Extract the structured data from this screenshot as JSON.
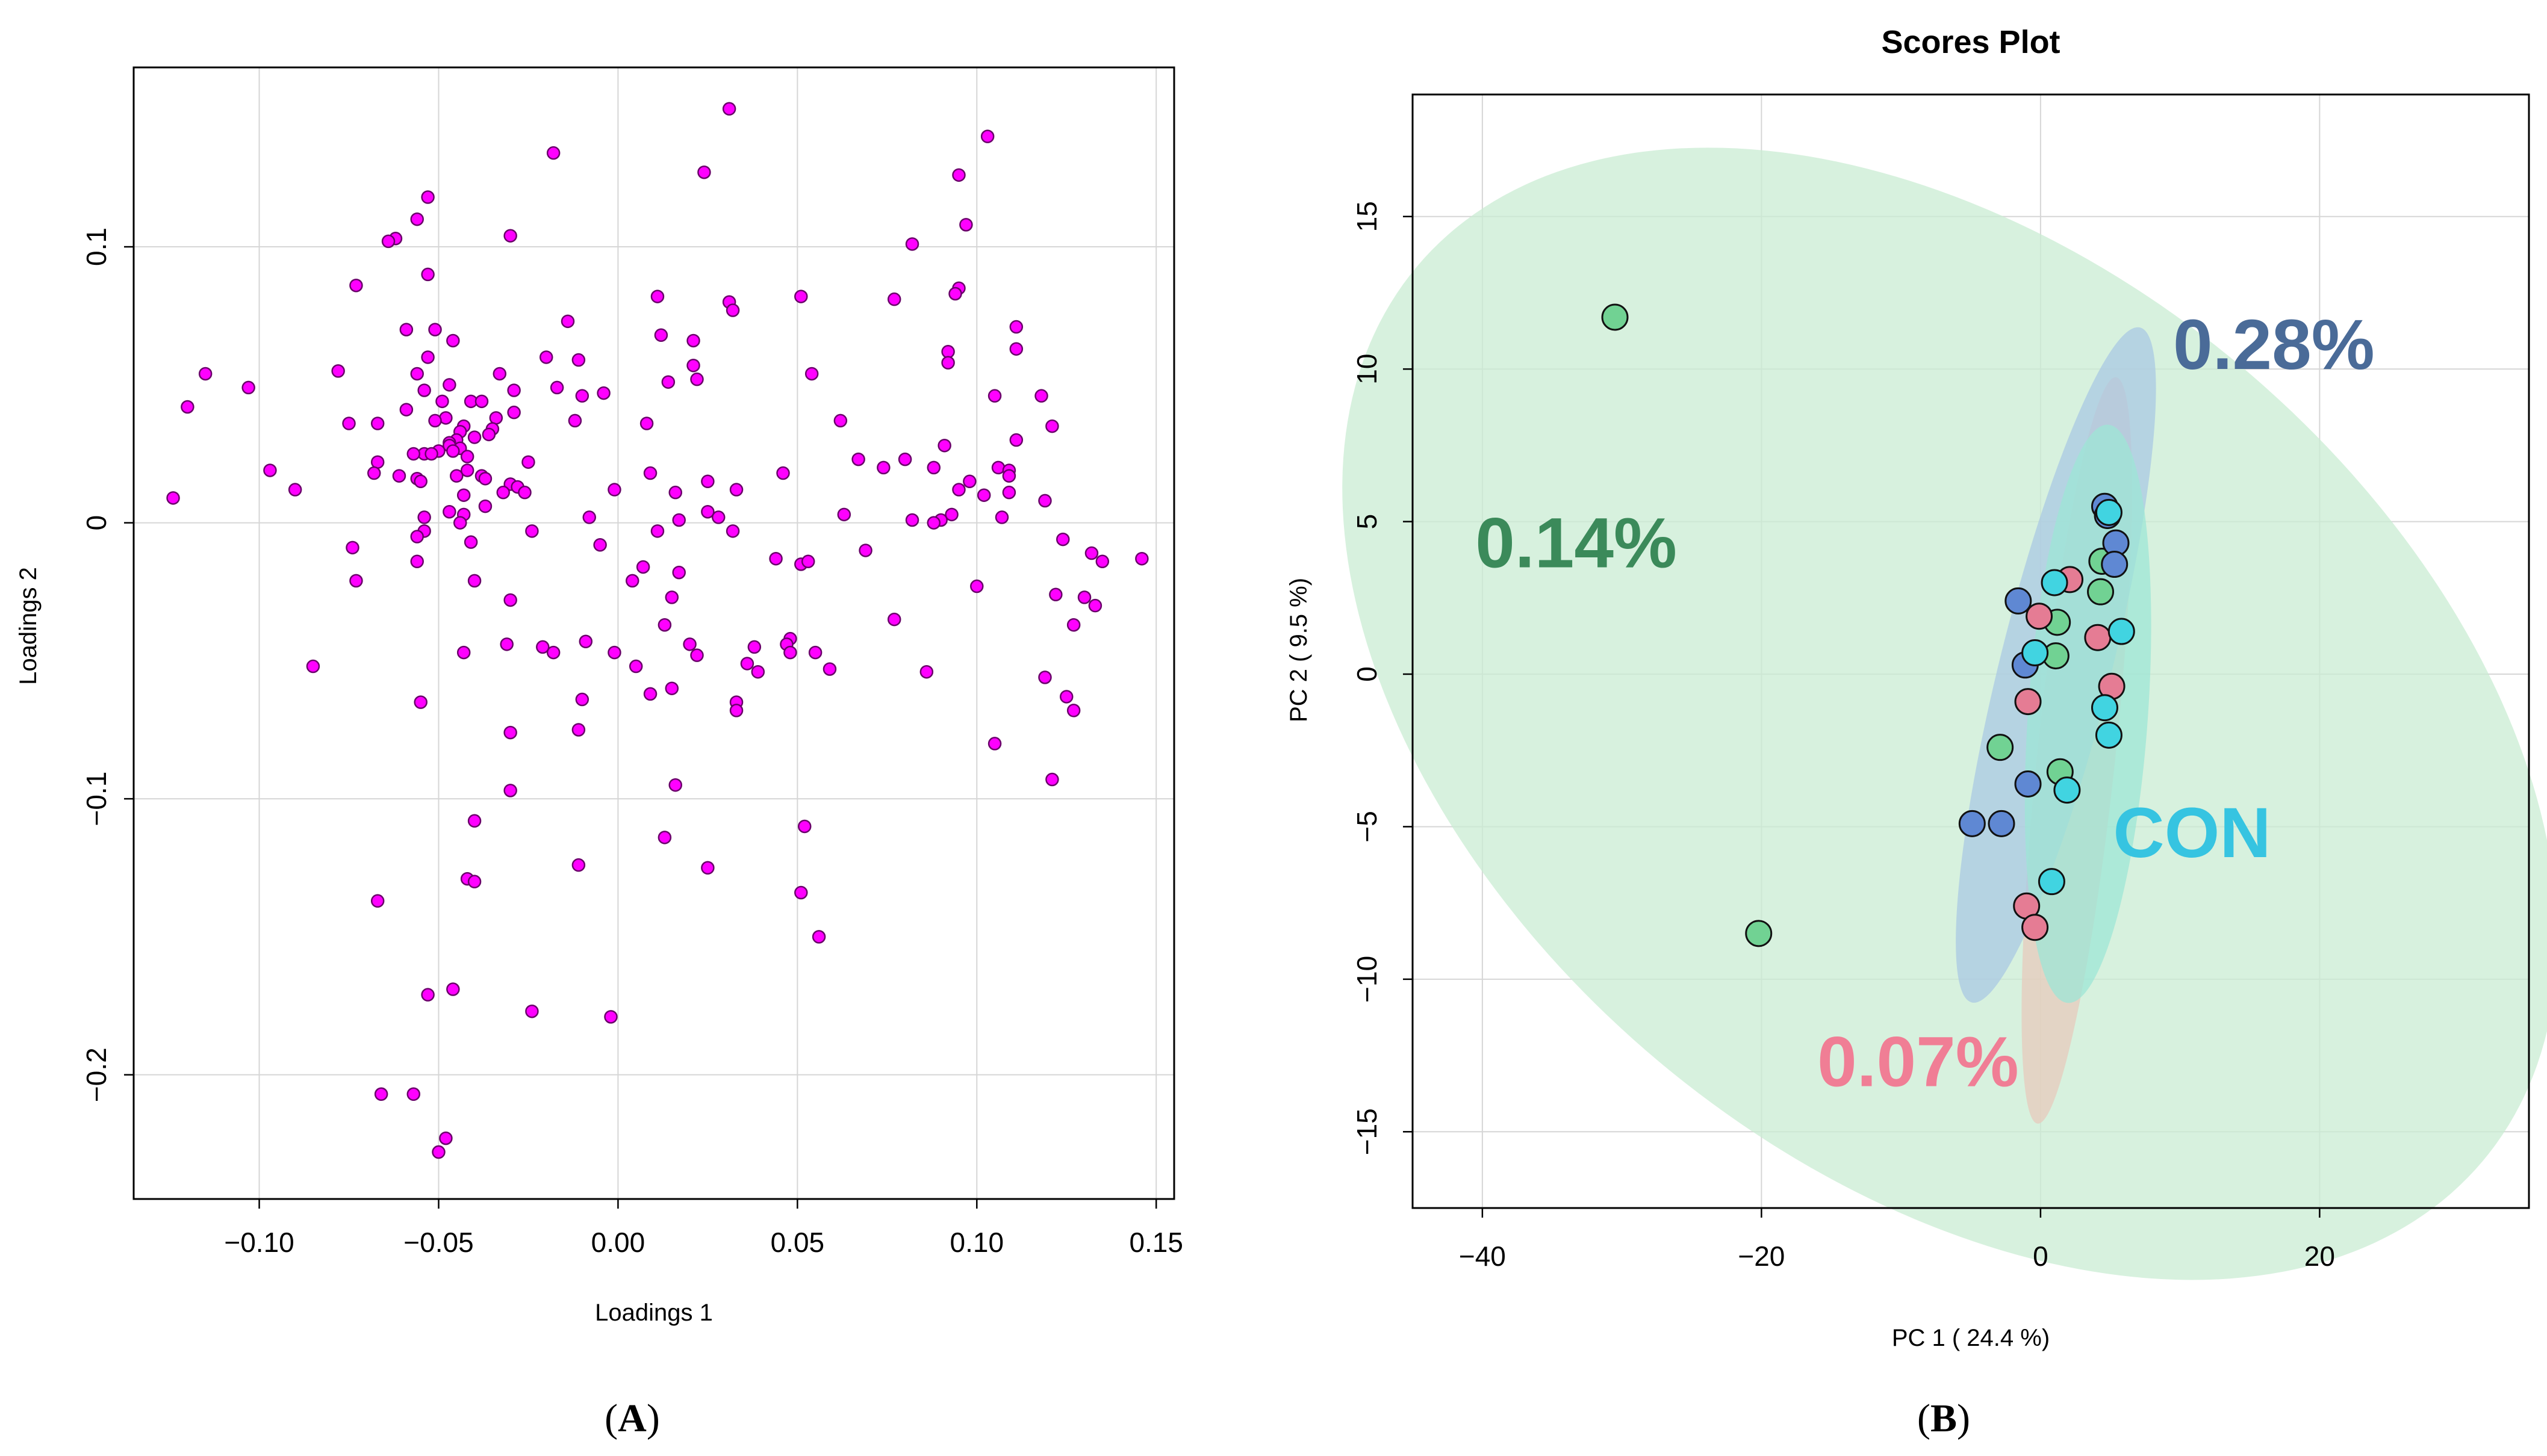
{
  "chart_data": [
    {
      "type": "scatter",
      "panel_label": "A",
      "title": "",
      "xlabel": "Loadings 1",
      "ylabel": "Loadings 2",
      "xlim": [
        -0.135,
        0.155
      ],
      "ylim": [
        -0.245,
        0.165
      ],
      "xticks": [
        -0.1,
        -0.05,
        0.0,
        0.05,
        0.1,
        0.15
      ],
      "xtick_labels": [
        "−0.10",
        "−0.05",
        "0.00",
        "0.05",
        "0.10",
        "0.15"
      ],
      "yticks": [
        -0.2,
        -0.1,
        0,
        0.1
      ],
      "ytick_labels": [
        "−0.2",
        "−0.1",
        "0",
        "0.1"
      ],
      "grid": true,
      "point_color": "#ff00ff",
      "points": [
        [
          0.031,
          0.15
        ],
        [
          0.103,
          0.14
        ],
        [
          -0.018,
          0.134
        ],
        [
          0.024,
          0.127
        ],
        [
          0.095,
          0.126
        ],
        [
          -0.053,
          0.118
        ],
        [
          -0.056,
          0.11
        ],
        [
          0.097,
          0.108
        ],
        [
          -0.03,
          0.104
        ],
        [
          -0.062,
          0.103
        ],
        [
          -0.064,
          0.102
        ],
        [
          0.082,
          0.101
        ],
        [
          -0.053,
          0.09
        ],
        [
          -0.073,
          0.086
        ],
        [
          0.095,
          0.085
        ],
        [
          0.094,
          0.083
        ],
        [
          0.011,
          0.082
        ],
        [
          0.051,
          0.082
        ],
        [
          0.077,
          0.081
        ],
        [
          0.031,
          0.08
        ],
        [
          0.032,
          0.077
        ],
        [
          -0.014,
          0.073
        ],
        [
          0.111,
          0.071
        ],
        [
          -0.059,
          0.07
        ],
        [
          -0.051,
          0.07
        ],
        [
          0.012,
          0.068
        ],
        [
          -0.046,
          0.066
        ],
        [
          0.021,
          0.066
        ],
        [
          0.111,
          0.063
        ],
        [
          0.092,
          0.062
        ],
        [
          -0.053,
          0.06
        ],
        [
          -0.02,
          0.06
        ],
        [
          -0.011,
          0.059
        ],
        [
          0.092,
          0.058
        ],
        [
          0.021,
          0.057
        ],
        [
          -0.078,
          0.055
        ],
        [
          -0.115,
          0.054
        ],
        [
          -0.056,
          0.054
        ],
        [
          -0.033,
          0.054
        ],
        [
          0.054,
          0.054
        ],
        [
          0.022,
          0.052
        ],
        [
          0.014,
          0.051
        ],
        [
          -0.047,
          0.05
        ],
        [
          -0.017,
          0.049
        ],
        [
          -0.103,
          0.049
        ],
        [
          -0.054,
          0.048
        ],
        [
          -0.029,
          0.048
        ],
        [
          -0.004,
          0.047
        ],
        [
          -0.01,
          0.046
        ],
        [
          0.105,
          0.046
        ],
        [
          0.118,
          0.046
        ],
        [
          -0.12,
          0.042
        ],
        [
          -0.041,
          0.044
        ],
        [
          -0.049,
          0.044
        ],
        [
          -0.038,
          0.044
        ],
        [
          -0.059,
          0.041
        ],
        [
          -0.029,
          0.04
        ],
        [
          -0.048,
          0.038
        ],
        [
          -0.034,
          0.038
        ],
        [
          -0.051,
          0.037
        ],
        [
          -0.012,
          0.037
        ],
        [
          -0.075,
          0.036
        ],
        [
          -0.067,
          0.036
        ],
        [
          -0.043,
          0.035
        ],
        [
          0.062,
          0.037
        ],
        [
          0.008,
          0.036
        ],
        [
          0.121,
          0.035
        ],
        [
          -0.035,
          0.034
        ],
        [
          -0.044,
          0.033
        ],
        [
          -0.036,
          0.032
        ],
        [
          -0.04,
          0.031
        ],
        [
          0.111,
          0.03
        ],
        [
          -0.045,
          0.03
        ],
        [
          -0.047,
          0.029
        ],
        [
          -0.047,
          0.028
        ],
        [
          0.091,
          0.028
        ],
        [
          -0.044,
          0.027
        ],
        [
          -0.05,
          0.026
        ],
        [
          -0.046,
          0.026
        ],
        [
          -0.054,
          0.025
        ],
        [
          -0.057,
          0.025
        ],
        [
          -0.052,
          0.025
        ],
        [
          -0.042,
          0.024
        ],
        [
          0.067,
          0.023
        ],
        [
          -0.025,
          0.022
        ],
        [
          0.08,
          0.023
        ],
        [
          -0.067,
          0.022
        ],
        [
          0.074,
          0.02
        ],
        [
          0.088,
          0.02
        ],
        [
          0.106,
          0.02
        ],
        [
          -0.097,
          0.019
        ],
        [
          0.109,
          0.019
        ],
        [
          0.009,
          0.018
        ],
        [
          0.046,
          0.018
        ],
        [
          0.109,
          0.017
        ],
        [
          -0.042,
          0.019
        ],
        [
          -0.068,
          0.018
        ],
        [
          -0.061,
          0.017
        ],
        [
          -0.045,
          0.017
        ],
        [
          -0.038,
          0.017
        ],
        [
          -0.056,
          0.016
        ],
        [
          -0.055,
          0.015
        ],
        [
          -0.037,
          0.016
        ],
        [
          -0.03,
          0.014
        ],
        [
          0.098,
          0.015
        ],
        [
          -0.028,
          0.013
        ],
        [
          0.025,
          0.015
        ],
        [
          -0.026,
          0.011
        ],
        [
          -0.001,
          0.012
        ],
        [
          0.033,
          0.012
        ],
        [
          0.109,
          0.011
        ],
        [
          -0.09,
          0.012
        ],
        [
          0.095,
          0.012
        ],
        [
          -0.032,
          0.011
        ],
        [
          -0.043,
          0.01
        ],
        [
          -0.124,
          0.009
        ],
        [
          0.016,
          0.011
        ],
        [
          0.102,
          0.01
        ],
        [
          0.119,
          0.008
        ],
        [
          -0.037,
          0.006
        ],
        [
          0.063,
          0.003
        ],
        [
          0.025,
          0.004
        ],
        [
          -0.047,
          0.004
        ],
        [
          0.093,
          0.003
        ],
        [
          -0.043,
          0.003
        ],
        [
          -0.054,
          0.002
        ],
        [
          -0.008,
          0.002
        ],
        [
          0.028,
          0.002
        ],
        [
          0.082,
          0.001
        ],
        [
          0.09,
          0.001
        ],
        [
          0.107,
          0.002
        ],
        [
          0.088,
          0.0
        ],
        [
          0.017,
          0.001
        ],
        [
          -0.044,
          0.0
        ],
        [
          -0.054,
          -0.003
        ],
        [
          -0.056,
          -0.005
        ],
        [
          -0.024,
          -0.003
        ],
        [
          0.011,
          -0.003
        ],
        [
          0.032,
          -0.003
        ],
        [
          -0.041,
          -0.007
        ],
        [
          -0.074,
          -0.009
        ],
        [
          0.124,
          -0.006
        ],
        [
          -0.005,
          -0.008
        ],
        [
          0.069,
          -0.01
        ],
        [
          0.044,
          -0.013
        ],
        [
          0.132,
          -0.011
        ],
        [
          0.135,
          -0.014
        ],
        [
          0.146,
          -0.013
        ],
        [
          0.051,
          -0.015
        ],
        [
          -0.056,
          -0.014
        ],
        [
          0.053,
          -0.014
        ],
        [
          0.007,
          -0.016
        ],
        [
          -0.04,
          -0.021
        ],
        [
          -0.073,
          -0.021
        ],
        [
          0.017,
          -0.018
        ],
        [
          0.1,
          -0.023
        ],
        [
          0.122,
          -0.026
        ],
        [
          0.13,
          -0.027
        ],
        [
          0.004,
          -0.021
        ],
        [
          0.015,
          -0.027
        ],
        [
          0.133,
          -0.03
        ],
        [
          -0.03,
          -0.028
        ],
        [
          0.077,
          -0.035
        ],
        [
          0.127,
          -0.037
        ],
        [
          -0.031,
          -0.044
        ],
        [
          -0.009,
          -0.043
        ],
        [
          0.02,
          -0.044
        ],
        [
          0.013,
          -0.037
        ],
        [
          0.038,
          -0.045
        ],
        [
          0.048,
          -0.042
        ],
        [
          0.047,
          -0.044
        ],
        [
          -0.021,
          -0.045
        ],
        [
          -0.018,
          -0.047
        ],
        [
          0.022,
          -0.048
        ],
        [
          0.036,
          -0.051
        ],
        [
          0.048,
          -0.047
        ],
        [
          0.039,
          -0.054
        ],
        [
          0.055,
          -0.047
        ],
        [
          -0.043,
          -0.047
        ],
        [
          -0.001,
          -0.047
        ],
        [
          0.005,
          -0.052
        ],
        [
          0.059,
          -0.053
        ],
        [
          0.086,
          -0.054
        ],
        [
          -0.085,
          -0.052
        ],
        [
          0.119,
          -0.056
        ],
        [
          0.015,
          -0.06
        ],
        [
          0.009,
          -0.062
        ],
        [
          -0.01,
          -0.064
        ],
        [
          0.033,
          -0.065
        ],
        [
          0.033,
          -0.068
        ],
        [
          0.125,
          -0.063
        ],
        [
          -0.055,
          -0.065
        ],
        [
          0.127,
          -0.068
        ],
        [
          -0.03,
          -0.076
        ],
        [
          -0.011,
          -0.075
        ],
        [
          0.105,
          -0.08
        ],
        [
          0.121,
          -0.093
        ],
        [
          0.016,
          -0.095
        ],
        [
          -0.03,
          -0.097
        ],
        [
          -0.04,
          -0.108
        ],
        [
          0.052,
          -0.11
        ],
        [
          0.013,
          -0.114
        ],
        [
          -0.011,
          -0.124
        ],
        [
          0.025,
          -0.125
        ],
        [
          -0.042,
          -0.129
        ],
        [
          -0.04,
          -0.13
        ],
        [
          0.051,
          -0.134
        ],
        [
          -0.067,
          -0.137
        ],
        [
          0.056,
          -0.15
        ],
        [
          -0.053,
          -0.171
        ],
        [
          -0.046,
          -0.169
        ],
        [
          -0.024,
          -0.177
        ],
        [
          -0.002,
          -0.179
        ],
        [
          -0.066,
          -0.207
        ],
        [
          -0.057,
          -0.207
        ],
        [
          -0.048,
          -0.223
        ],
        [
          -0.05,
          -0.228
        ]
      ]
    },
    {
      "type": "scatter",
      "panel_label": "B",
      "title": "Scores Plot",
      "xlabel": "PC 1 ( 24.4 %)",
      "ylabel": "PC 2 ( 9.5 %)",
      "xlim": [
        -45,
        35
      ],
      "ylim": [
        -17.5,
        19
      ],
      "xticks": [
        -40,
        -20,
        0,
        20
      ],
      "yticks": [
        -15,
        -10,
        -5,
        0,
        5,
        10,
        15
      ],
      "grid": true,
      "groups": [
        {
          "name": "0.14%",
          "color": "#3b8a5a",
          "fill": "#71d293",
          "ellipse_fill": "#c9ecd3",
          "ellipse": {
            "cx": -6.5,
            "cy": -1.3,
            "rx": 32.5,
            "ry": 22.8,
            "angle_deg": -50
          },
          "label_pos": [
            -40.5,
            3.5
          ],
          "points": [
            [
              -30.5,
              11.7
            ],
            [
              -20.2,
              -8.5
            ],
            [
              4.4,
              3.7
            ],
            [
              1.2,
              1.7
            ],
            [
              1.1,
              0.6
            ],
            [
              4.3,
              2.7
            ],
            [
              -2.9,
              -2.4
            ],
            [
              1.4,
              -3.2
            ]
          ]
        },
        {
          "name": "0.07%",
          "color": "#f07e95",
          "fill": "#e57c94",
          "ellipse_fill": "#e7c9bc",
          "ellipse": {
            "cx": 2.6,
            "cy": -2.5,
            "rx": 2.8,
            "ry": 12.3,
            "angle_deg": 6
          },
          "label_pos": [
            -16,
            -13.5
          ],
          "points": [
            [
              -0.1,
              1.9
            ],
            [
              2.1,
              3.1
            ],
            [
              4.1,
              1.2
            ],
            [
              -0.9,
              -0.9
            ],
            [
              5.1,
              -0.4
            ],
            [
              -1.0,
              -7.6
            ],
            [
              -0.4,
              -8.3
            ]
          ]
        },
        {
          "name": "0.28%",
          "color": "#4a6b98",
          "fill": "#5f88d3",
          "ellipse_fill": "#a9c8e3",
          "ellipse": {
            "cx": 1.1,
            "cy": 0.3,
            "rx": 4.0,
            "ry": 11.4,
            "angle_deg": 14
          },
          "label_pos": [
            9.5,
            10
          ],
          "points": [
            [
              4.6,
              5.5
            ],
            [
              4.8,
              5.2
            ],
            [
              5.4,
              4.3
            ],
            [
              5.3,
              3.6
            ],
            [
              -1.6,
              2.4
            ],
            [
              -1.1,
              0.3
            ],
            [
              -0.9,
              -3.6
            ],
            [
              -4.9,
              -4.9
            ],
            [
              -2.8,
              -4.9
            ]
          ]
        },
        {
          "name": "CON",
          "color": "#36c4e1",
          "fill": "#41d4e1",
          "ellipse_fill": "#9ee6d6",
          "ellipse": {
            "cx": 3.4,
            "cy": -1.3,
            "rx": 4.3,
            "ry": 9.5,
            "angle_deg": 4
          },
          "label_pos": [
            5.2,
            -6
          ],
          "points": [
            [
              1.0,
              3.0
            ],
            [
              4.9,
              5.3
            ],
            [
              5.8,
              1.4
            ],
            [
              -0.4,
              0.7
            ],
            [
              4.6,
              -1.1
            ],
            [
              4.9,
              -2.0
            ],
            [
              1.9,
              -3.8
            ],
            [
              0.8,
              -6.8
            ]
          ]
        }
      ]
    }
  ]
}
